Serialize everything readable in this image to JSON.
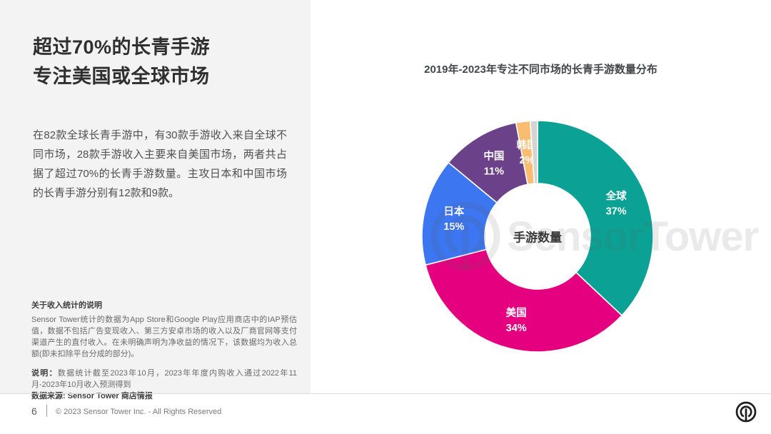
{
  "page": {
    "number": "6",
    "copyright": "© 2023 Sensor Tower Inc. - All Rights Reserved"
  },
  "left_panel": {
    "title_line1": "超过70%的长青手游",
    "title_line2": "专注美国或全球市场",
    "body": "在82款全球长青手游中，有30款手游收入来自全球不同市场，28款手游收入主要来自美国市场，两者共占据了超过70%的长青手游数量。主攻日本和中国市场的长青手游分别有12款和9款。",
    "notes": {
      "heading": "关于收入统计的说明",
      "body": "Sensor Tower统计的数据为App Store和Google Play应用商店中的IAP预估值，数据不包括广告变现收入、第三方安卓市场的收入以及厂商官网等支付渠道产生的直付收入。在未明确声明为净收益的情况下，该数据均为收入总额(即未扣除平台分成的部分)。",
      "note_label": "说明：",
      "note_text": "数据统计截至2023年10月，2023年年度内购收入通过2022年11月-2023年10月收入预测得到",
      "source": "数据来源: Sensor Tower 商店情报"
    }
  },
  "chart_data": {
    "type": "pie",
    "subtype": "donut",
    "title": "2019年-2023年专注不同市场的长青手游数量分布",
    "center_label": "手游数量",
    "start_angle_deg": 0,
    "direction": "clockwise",
    "watermark": "SensorTower",
    "slices": [
      {
        "label": "全球",
        "value": 37,
        "display": "37%",
        "color": "#0BA295"
      },
      {
        "label": "美国",
        "value": 34,
        "display": "34%",
        "color": "#E4007F"
      },
      {
        "label": "日本",
        "value": 15,
        "display": "15%",
        "color": "#3C76F0"
      },
      {
        "label": "中国",
        "value": 11,
        "display": "11%",
        "color": "#6B4289"
      },
      {
        "label": "韩国",
        "value": 2,
        "display": "2%",
        "color": "#FABC71"
      },
      {
        "label": "",
        "value": 1,
        "display": "",
        "color": "#D4D4D4"
      }
    ]
  }
}
